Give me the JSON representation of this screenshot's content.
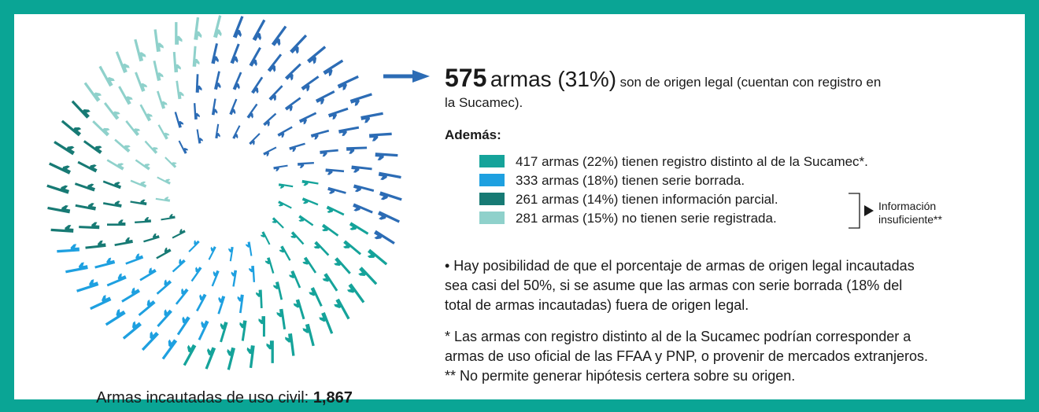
{
  "headline": {
    "number": "575",
    "text": "armas (31%)",
    "detail_line1": "son de origen legal (cuentan con registro en",
    "detail_line2": "la Sucamec).",
    "color": "#2c6cb5"
  },
  "additional": {
    "title": "Además:",
    "items": [
      {
        "label": "417 armas (22%) tienen registro distinto al de la Sucamec*.",
        "color": "#15a39a"
      },
      {
        "label": "333 armas (18%) tienen serie borrada.",
        "color": "#1ea0e0"
      },
      {
        "label": "261 armas (14%) tienen información parcial.",
        "color": "#177a74"
      },
      {
        "label": "281 armas (15%) no tienen serie registrada.",
        "color": "#8fd1cb"
      }
    ],
    "bracket_label": [
      "Información",
      "insuficiente**"
    ]
  },
  "bullet": [
    "• Hay posibilidad de que el porcentaje de armas de origen legal incautadas",
    "sea casi del 50%, si se asume que las armas con serie borrada (18% del",
    "total de armas incautadas) fuera de origen legal."
  ],
  "notes": [
    "* Las armas con registro distinto al de la Sucamec podrían corresponder a",
    "armas de uso oficial de las FFAA y PNP, o provenir de mercados extranjeros.",
    "** No permite generar hipótesis certera sobre su origen."
  ],
  "caption": {
    "text": "Armas incautadas de uso civil:",
    "total": "1,867"
  }
}
